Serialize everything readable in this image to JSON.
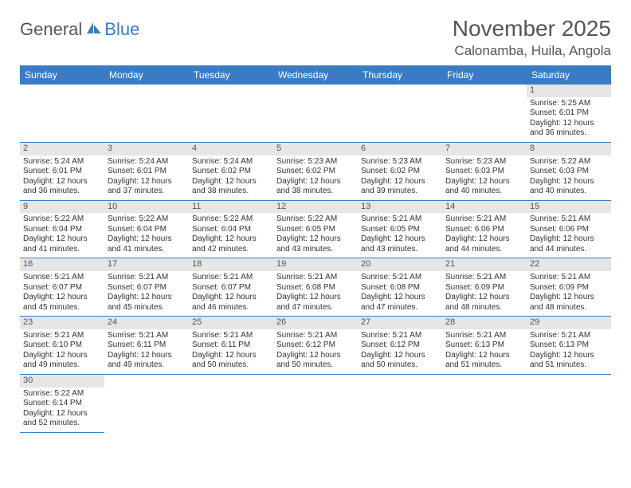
{
  "logo": {
    "text1": "General",
    "text2": "Blue"
  },
  "title": "November 2025",
  "location": "Calonamba, Huila, Angola",
  "colors": {
    "brand": "#3a7cc4",
    "text": "#555555",
    "daynum_bg": "#e6e6e6"
  },
  "weekdays": [
    "Sunday",
    "Monday",
    "Tuesday",
    "Wednesday",
    "Thursday",
    "Friday",
    "Saturday"
  ],
  "layout": {
    "columns": 7,
    "rows": 6,
    "first_day_column": 6
  },
  "days": [
    {
      "n": 1,
      "sunrise": "5:25 AM",
      "sunset": "6:01 PM",
      "daylight": "12 hours and 36 minutes."
    },
    {
      "n": 2,
      "sunrise": "5:24 AM",
      "sunset": "6:01 PM",
      "daylight": "12 hours and 36 minutes."
    },
    {
      "n": 3,
      "sunrise": "5:24 AM",
      "sunset": "6:01 PM",
      "daylight": "12 hours and 37 minutes."
    },
    {
      "n": 4,
      "sunrise": "5:24 AM",
      "sunset": "6:02 PM",
      "daylight": "12 hours and 38 minutes."
    },
    {
      "n": 5,
      "sunrise": "5:23 AM",
      "sunset": "6:02 PM",
      "daylight": "12 hours and 38 minutes."
    },
    {
      "n": 6,
      "sunrise": "5:23 AM",
      "sunset": "6:02 PM",
      "daylight": "12 hours and 39 minutes."
    },
    {
      "n": 7,
      "sunrise": "5:23 AM",
      "sunset": "6:03 PM",
      "daylight": "12 hours and 40 minutes."
    },
    {
      "n": 8,
      "sunrise": "5:22 AM",
      "sunset": "6:03 PM",
      "daylight": "12 hours and 40 minutes."
    },
    {
      "n": 9,
      "sunrise": "5:22 AM",
      "sunset": "6:04 PM",
      "daylight": "12 hours and 41 minutes."
    },
    {
      "n": 10,
      "sunrise": "5:22 AM",
      "sunset": "6:04 PM",
      "daylight": "12 hours and 41 minutes."
    },
    {
      "n": 11,
      "sunrise": "5:22 AM",
      "sunset": "6:04 PM",
      "daylight": "12 hours and 42 minutes."
    },
    {
      "n": 12,
      "sunrise": "5:22 AM",
      "sunset": "6:05 PM",
      "daylight": "12 hours and 43 minutes."
    },
    {
      "n": 13,
      "sunrise": "5:21 AM",
      "sunset": "6:05 PM",
      "daylight": "12 hours and 43 minutes."
    },
    {
      "n": 14,
      "sunrise": "5:21 AM",
      "sunset": "6:06 PM",
      "daylight": "12 hours and 44 minutes."
    },
    {
      "n": 15,
      "sunrise": "5:21 AM",
      "sunset": "6:06 PM",
      "daylight": "12 hours and 44 minutes."
    },
    {
      "n": 16,
      "sunrise": "5:21 AM",
      "sunset": "6:07 PM",
      "daylight": "12 hours and 45 minutes."
    },
    {
      "n": 17,
      "sunrise": "5:21 AM",
      "sunset": "6:07 PM",
      "daylight": "12 hours and 45 minutes."
    },
    {
      "n": 18,
      "sunrise": "5:21 AM",
      "sunset": "6:07 PM",
      "daylight": "12 hours and 46 minutes."
    },
    {
      "n": 19,
      "sunrise": "5:21 AM",
      "sunset": "6:08 PM",
      "daylight": "12 hours and 47 minutes."
    },
    {
      "n": 20,
      "sunrise": "5:21 AM",
      "sunset": "6:08 PM",
      "daylight": "12 hours and 47 minutes."
    },
    {
      "n": 21,
      "sunrise": "5:21 AM",
      "sunset": "6:09 PM",
      "daylight": "12 hours and 48 minutes."
    },
    {
      "n": 22,
      "sunrise": "5:21 AM",
      "sunset": "6:09 PM",
      "daylight": "12 hours and 48 minutes."
    },
    {
      "n": 23,
      "sunrise": "5:21 AM",
      "sunset": "6:10 PM",
      "daylight": "12 hours and 49 minutes."
    },
    {
      "n": 24,
      "sunrise": "5:21 AM",
      "sunset": "6:11 PM",
      "daylight": "12 hours and 49 minutes."
    },
    {
      "n": 25,
      "sunrise": "5:21 AM",
      "sunset": "6:11 PM",
      "daylight": "12 hours and 50 minutes."
    },
    {
      "n": 26,
      "sunrise": "5:21 AM",
      "sunset": "6:12 PM",
      "daylight": "12 hours and 50 minutes."
    },
    {
      "n": 27,
      "sunrise": "5:21 AM",
      "sunset": "6:12 PM",
      "daylight": "12 hours and 50 minutes."
    },
    {
      "n": 28,
      "sunrise": "5:21 AM",
      "sunset": "6:13 PM",
      "daylight": "12 hours and 51 minutes."
    },
    {
      "n": 29,
      "sunrise": "5:21 AM",
      "sunset": "6:13 PM",
      "daylight": "12 hours and 51 minutes."
    },
    {
      "n": 30,
      "sunrise": "5:22 AM",
      "sunset": "6:14 PM",
      "daylight": "12 hours and 52 minutes."
    }
  ],
  "labels": {
    "sunrise": "Sunrise:",
    "sunset": "Sunset:",
    "daylight": "Daylight:"
  }
}
